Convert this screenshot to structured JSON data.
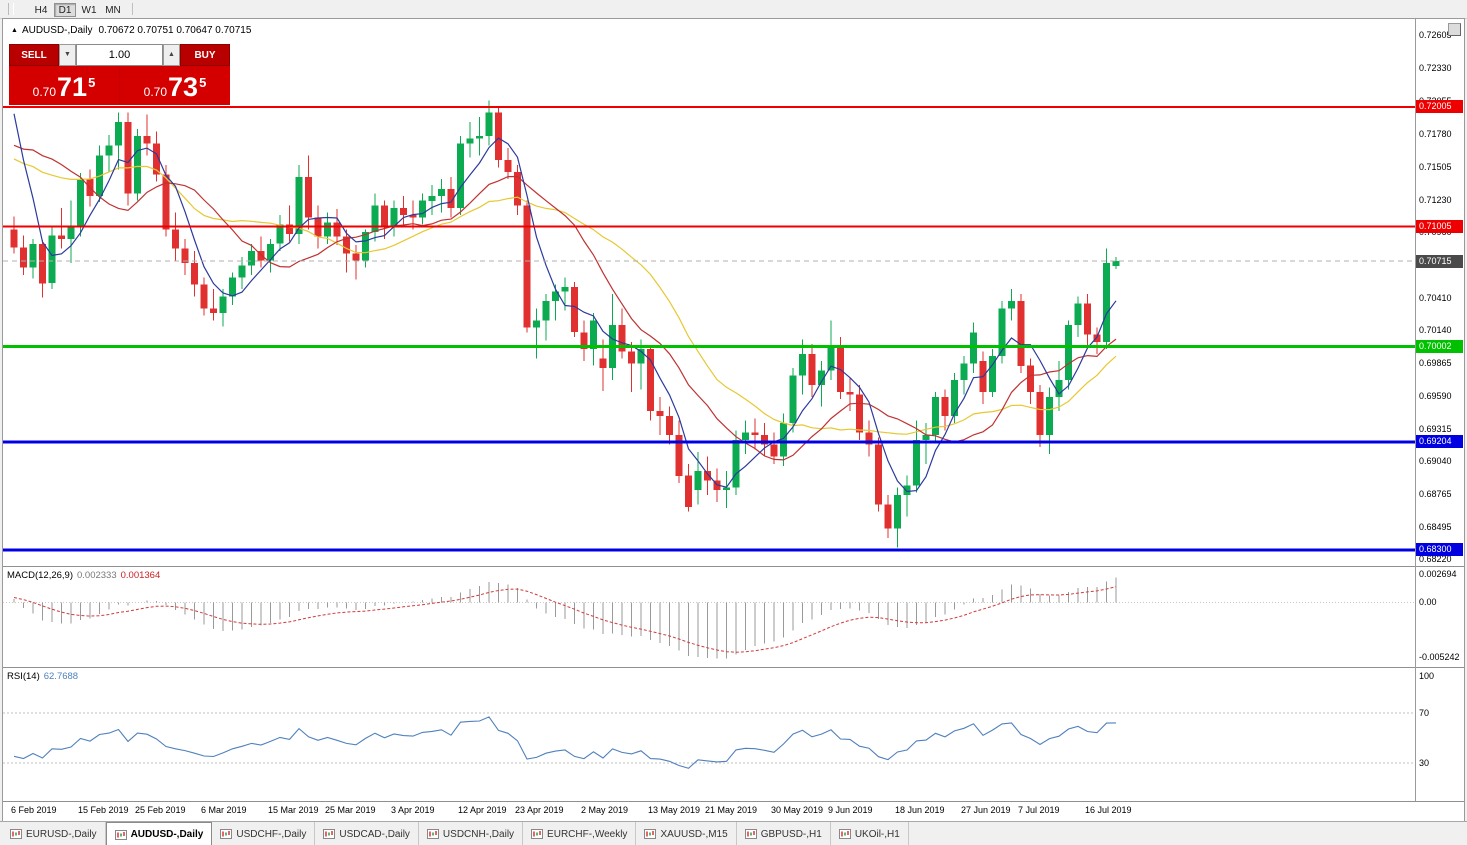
{
  "window": {
    "periods": [
      {
        "label": "H4",
        "active": false
      },
      {
        "label": "D1",
        "active": true
      },
      {
        "label": "W1",
        "active": false
      },
      {
        "label": "MN",
        "active": false
      }
    ],
    "tabs": [
      {
        "label": "EURUSD-,Daily",
        "active": false
      },
      {
        "label": "AUDUSD-,Daily",
        "active": true
      },
      {
        "label": "USDCHF-,Daily",
        "active": false
      },
      {
        "label": "USDCAD-,Daily",
        "active": false
      },
      {
        "label": "USDCNH-,Daily",
        "active": false
      },
      {
        "label": "EURCHF-,Weekly",
        "active": false
      },
      {
        "label": "XAUUSD-,M15",
        "active": false
      },
      {
        "label": "GBPUSD-,H1",
        "active": false
      },
      {
        "label": "UKOil-,H1",
        "active": false
      }
    ]
  },
  "icons": {
    "collapse_triangle": "▲",
    "triangle_up": "▲",
    "triangle_down": "▼"
  },
  "chart_title": {
    "symbol": "AUDUSD-,Daily",
    "ohlc": "0.70672 0.70751 0.70647 0.70715"
  },
  "trade_panel": {
    "sell_label": "SELL",
    "buy_label": "BUY",
    "volume": "1.00",
    "bid": {
      "prefix": "0.70",
      "big": "71",
      "sup": "5"
    },
    "ask": {
      "prefix": "0.70",
      "big": "73",
      "sup": "5"
    }
  },
  "price_axis": {
    "ticks": [
      "0.72605",
      "0.72330",
      "0.72055",
      "0.71780",
      "0.71505",
      "0.71230",
      "0.70960",
      "0.70685",
      "0.70410",
      "0.70140",
      "0.69865",
      "0.69590",
      "0.69315",
      "0.69040",
      "0.68765",
      "0.68495",
      "0.68220"
    ]
  },
  "indicators": {
    "macd": {
      "name": "MACD(12,26,9)",
      "value_main": "0.002333",
      "value_signal": "0.001364",
      "axis": [
        "0.002694",
        "0.00",
        "-0.005242"
      ],
      "params": [
        12,
        26,
        9
      ]
    },
    "rsi": {
      "name": "RSI(14)",
      "value": "62.7688",
      "axis": [
        "100",
        "70",
        "30"
      ],
      "levels": [
        70,
        30
      ],
      "period": 14
    }
  },
  "date_axis": [
    {
      "text": "6 Feb 2019",
      "i": 0
    },
    {
      "text": "15 Feb 2019",
      "i": 7
    },
    {
      "text": "25 Feb 2019",
      "i": 13
    },
    {
      "text": "6 Mar 2019",
      "i": 20
    },
    {
      "text": "15 Mar 2019",
      "i": 27
    },
    {
      "text": "25 Mar 2019",
      "i": 33
    },
    {
      "text": "3 Apr 2019",
      "i": 40
    },
    {
      "text": "12 Apr 2019",
      "i": 47
    },
    {
      "text": "23 Apr 2019",
      "i": 53
    },
    {
      "text": "2 May 2019",
      "i": 60
    },
    {
      "text": "13 May 2019",
      "i": 67
    },
    {
      "text": "21 May 2019",
      "i": 73
    },
    {
      "text": "30 May 2019",
      "i": 80
    },
    {
      "text": "9 Jun 2019",
      "i": 86
    },
    {
      "text": "18 Jun 2019",
      "i": 93
    },
    {
      "text": "27 Jun 2019",
      "i": 100
    },
    {
      "text": "7 Jul 2019",
      "i": 106
    },
    {
      "text": "16 Jul 2019",
      "i": 113
    }
  ],
  "colors": {
    "up": "#0cab51",
    "down": "#e03030",
    "ma_fast": "#2b3a9e",
    "ma_mid": "#bf3232",
    "ma_slow": "#e6c832",
    "macd_hist": "#9a9a9a",
    "macd_signal": "#d23a3a",
    "rsi_line": "#4f81bd",
    "current_dash": "#b0b0b0"
  },
  "chart_data": {
    "type": "candlestick",
    "symbol": "AUDUSD",
    "timeframe": "Daily",
    "current_ohlc": {
      "open": 0.70672,
      "high": 0.70751,
      "low": 0.70647,
      "close": 0.70715
    },
    "current_price": {
      "value": 0.70715,
      "label": "0.70715",
      "badge_color": "#4a4a4a"
    },
    "levels": [
      {
        "price": 0.72005,
        "label": "0.72005",
        "color": "#ee0000",
        "width": 2
      },
      {
        "price": 0.71005,
        "label": "0.71005",
        "color": "#ee0000",
        "width": 2
      },
      {
        "price": 0.70002,
        "label": "0.70002",
        "color": "#00c000",
        "width": 3
      },
      {
        "price": 0.69204,
        "label": "0.69204",
        "color": "#0000e0",
        "width": 3
      },
      {
        "price": 0.683,
        "label": "0.68300",
        "color": "#0000e0",
        "width": 3
      }
    ],
    "ma_periods": {
      "fast": 5,
      "mid": 13,
      "slow": 21
    },
    "history_closes": [
      0.718,
      0.7195,
      0.7205,
      0.719,
      0.7175,
      0.716,
      0.7148,
      0.714,
      0.7152,
      0.7145,
      0.7135,
      0.7128,
      0.714,
      0.712,
      0.7108,
      0.7095,
      0.7115,
      0.713,
      0.715,
      0.7172,
      0.7205,
      0.724,
      0.726,
      0.7246,
      0.7235,
      0.715
    ],
    "candles": [
      [
        0.7098,
        0.7109,
        0.7078,
        0.7083
      ],
      [
        0.7083,
        0.7093,
        0.706,
        0.7066
      ],
      [
        0.7066,
        0.709,
        0.7057,
        0.7086
      ],
      [
        0.7086,
        0.7089,
        0.7041,
        0.7053
      ],
      [
        0.7053,
        0.7101,
        0.7048,
        0.7093
      ],
      [
        0.7093,
        0.7116,
        0.7082,
        0.709
      ],
      [
        0.709,
        0.7122,
        0.707,
        0.71
      ],
      [
        0.71,
        0.7145,
        0.7092,
        0.714
      ],
      [
        0.714,
        0.7148,
        0.7117,
        0.7126
      ],
      [
        0.7126,
        0.7168,
        0.7121,
        0.716
      ],
      [
        0.716,
        0.7177,
        0.7146,
        0.7168
      ],
      [
        0.7168,
        0.7196,
        0.7148,
        0.7188
      ],
      [
        0.7188,
        0.7196,
        0.7118,
        0.7128
      ],
      [
        0.7128,
        0.7182,
        0.7122,
        0.7176
      ],
      [
        0.7176,
        0.7194,
        0.716,
        0.717
      ],
      [
        0.717,
        0.718,
        0.7138,
        0.7144
      ],
      [
        0.7144,
        0.7152,
        0.7092,
        0.7098
      ],
      [
        0.7098,
        0.7112,
        0.7072,
        0.7082
      ],
      [
        0.7082,
        0.709,
        0.706,
        0.707
      ],
      [
        0.707,
        0.708,
        0.7042,
        0.7052
      ],
      [
        0.7052,
        0.7058,
        0.7026,
        0.7032
      ],
      [
        0.7032,
        0.7048,
        0.7022,
        0.7028
      ],
      [
        0.7028,
        0.7048,
        0.7017,
        0.7042
      ],
      [
        0.7042,
        0.7062,
        0.7035,
        0.7058
      ],
      [
        0.7058,
        0.7075,
        0.7048,
        0.7068
      ],
      [
        0.7068,
        0.7086,
        0.706,
        0.708
      ],
      [
        0.708,
        0.7092,
        0.7066,
        0.7072
      ],
      [
        0.7072,
        0.709,
        0.7062,
        0.7086
      ],
      [
        0.7086,
        0.711,
        0.708,
        0.7102
      ],
      [
        0.7102,
        0.7118,
        0.7088,
        0.7094
      ],
      [
        0.7094,
        0.7152,
        0.7086,
        0.7142
      ],
      [
        0.7142,
        0.716,
        0.7098,
        0.7108
      ],
      [
        0.7108,
        0.7118,
        0.7082,
        0.7092
      ],
      [
        0.7092,
        0.7112,
        0.7086,
        0.7104
      ],
      [
        0.7104,
        0.7115,
        0.7085,
        0.7092
      ],
      [
        0.7092,
        0.7098,
        0.7062,
        0.7078
      ],
      [
        0.7078,
        0.7085,
        0.7056,
        0.7072
      ],
      [
        0.7072,
        0.7098,
        0.7066,
        0.7096
      ],
      [
        0.7096,
        0.7128,
        0.7088,
        0.7118
      ],
      [
        0.7118,
        0.7122,
        0.709,
        0.71
      ],
      [
        0.71,
        0.7122,
        0.7092,
        0.7116
      ],
      [
        0.7116,
        0.7126,
        0.71,
        0.711
      ],
      [
        0.711,
        0.7122,
        0.7098,
        0.7108
      ],
      [
        0.7108,
        0.7128,
        0.7102,
        0.7122
      ],
      [
        0.7122,
        0.7135,
        0.711,
        0.7126
      ],
      [
        0.7126,
        0.714,
        0.7112,
        0.7132
      ],
      [
        0.7132,
        0.7142,
        0.7108,
        0.7116
      ],
      [
        0.7116,
        0.7176,
        0.711,
        0.717
      ],
      [
        0.717,
        0.7188,
        0.7158,
        0.7174
      ],
      [
        0.7174,
        0.7192,
        0.716,
        0.7176
      ],
      [
        0.7176,
        0.7206,
        0.7168,
        0.7196
      ],
      [
        0.7196,
        0.72,
        0.715,
        0.7156
      ],
      [
        0.7156,
        0.7166,
        0.714,
        0.7146
      ],
      [
        0.7146,
        0.7152,
        0.711,
        0.7118
      ],
      [
        0.7118,
        0.7122,
        0.7012,
        0.7016
      ],
      [
        0.7016,
        0.7032,
        0.699,
        0.7022
      ],
      [
        0.7022,
        0.7044,
        0.7005,
        0.7038
      ],
      [
        0.7038,
        0.7052,
        0.7022,
        0.7046
      ],
      [
        0.7046,
        0.7058,
        0.703,
        0.705
      ],
      [
        0.705,
        0.7054,
        0.7008,
        0.7012
      ],
      [
        0.7012,
        0.7022,
        0.6988,
        0.6998
      ],
      [
        0.6998,
        0.7028,
        0.6984,
        0.7022
      ],
      [
        0.699,
        0.7006,
        0.6963,
        0.6982
      ],
      [
        0.6982,
        0.7044,
        0.6972,
        0.7018
      ],
      [
        0.7018,
        0.7032,
        0.699,
        0.6996
      ],
      [
        0.6996,
        0.7004,
        0.6962,
        0.6986
      ],
      [
        0.6986,
        0.7006,
        0.6964,
        0.6998
      ],
      [
        0.6998,
        0.7,
        0.6938,
        0.6946
      ],
      [
        0.6946,
        0.6958,
        0.6926,
        0.6942
      ],
      [
        0.6942,
        0.695,
        0.6918,
        0.6926
      ],
      [
        0.6926,
        0.6938,
        0.6886,
        0.6892
      ],
      [
        0.6892,
        0.6902,
        0.6862,
        0.6866
      ],
      [
        0.688,
        0.6912,
        0.6868,
        0.6896
      ],
      [
        0.6896,
        0.6908,
        0.6876,
        0.6888
      ],
      [
        0.6888,
        0.6898,
        0.687,
        0.688
      ],
      [
        0.688,
        0.6896,
        0.6865,
        0.6882
      ],
      [
        0.6882,
        0.693,
        0.6876,
        0.6922
      ],
      [
        0.6922,
        0.6938,
        0.691,
        0.6928
      ],
      [
        0.6928,
        0.694,
        0.6914,
        0.6926
      ],
      [
        0.6926,
        0.6936,
        0.6908,
        0.6918
      ],
      [
        0.6918,
        0.6928,
        0.6902,
        0.6908
      ],
      [
        0.6908,
        0.6944,
        0.69,
        0.6936
      ],
      [
        0.6936,
        0.6982,
        0.6928,
        0.6976
      ],
      [
        0.6976,
        0.7006,
        0.696,
        0.6994
      ],
      [
        0.6994,
        0.7002,
        0.6958,
        0.6968
      ],
      [
        0.6968,
        0.6988,
        0.695,
        0.698
      ],
      [
        0.698,
        0.7022,
        0.6972,
        0.7
      ],
      [
        0.7,
        0.7008,
        0.6956,
        0.6962
      ],
      [
        0.6962,
        0.6974,
        0.6946,
        0.696
      ],
      [
        0.696,
        0.6968,
        0.6922,
        0.6928
      ],
      [
        0.6928,
        0.6938,
        0.6908,
        0.6918
      ],
      [
        0.6918,
        0.6924,
        0.6862,
        0.6868
      ],
      [
        0.6868,
        0.6876,
        0.684,
        0.6848
      ],
      [
        0.6848,
        0.6882,
        0.6832,
        0.6876
      ],
      [
        0.6876,
        0.6892,
        0.6858,
        0.6884
      ],
      [
        0.6884,
        0.6938,
        0.6878,
        0.6922
      ],
      [
        0.6922,
        0.6936,
        0.6902,
        0.6926
      ],
      [
        0.6926,
        0.6962,
        0.692,
        0.6958
      ],
      [
        0.6958,
        0.6964,
        0.693,
        0.6942
      ],
      [
        0.6942,
        0.6978,
        0.6936,
        0.6972
      ],
      [
        0.6972,
        0.6992,
        0.696,
        0.6986
      ],
      [
        0.6986,
        0.702,
        0.6978,
        0.7012
      ],
      [
        0.6988,
        0.6996,
        0.6952,
        0.6962
      ],
      [
        0.6962,
        0.6998,
        0.6958,
        0.6992
      ],
      [
        0.6992,
        0.7038,
        0.6986,
        0.7032
      ],
      [
        0.7032,
        0.7048,
        0.7022,
        0.7038
      ],
      [
        0.7038,
        0.7044,
        0.6978,
        0.6984
      ],
      [
        0.6984,
        0.699,
        0.6952,
        0.6962
      ],
      [
        0.6962,
        0.6968,
        0.6916,
        0.6926
      ],
      [
        0.6926,
        0.6966,
        0.691,
        0.6958
      ],
      [
        0.6958,
        0.6988,
        0.6946,
        0.6972
      ],
      [
        0.6972,
        0.7022,
        0.6964,
        0.7018
      ],
      [
        0.7018,
        0.7042,
        0.7008,
        0.7036
      ],
      [
        0.7036,
        0.7044,
        0.7,
        0.701
      ],
      [
        0.701,
        0.7016,
        0.6994,
        0.7004
      ],
      [
        0.7004,
        0.7082,
        0.6998,
        0.707
      ],
      [
        0.70672,
        0.70751,
        0.70647,
        0.70715
      ]
    ]
  }
}
